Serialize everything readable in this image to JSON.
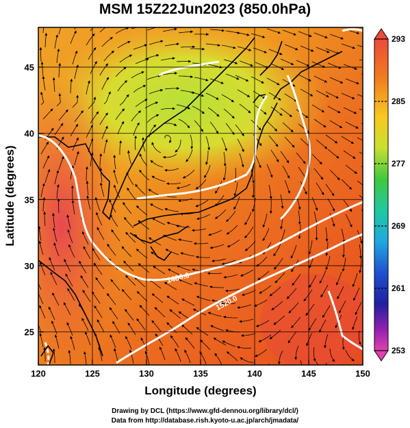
{
  "title": "MSM 15Z22Jun2023 (850.0hPa)",
  "axes": {
    "xlabel": "Longitude (degrees)",
    "ylabel": "Latitude  (degrees)",
    "x_ticks": [
      "120",
      "125",
      "130",
      "135",
      "140",
      "145",
      "150"
    ],
    "y_ticks": [
      "25",
      "30",
      "35",
      "40",
      "45"
    ]
  },
  "colorbar": {
    "min": 253,
    "max": 293,
    "labels": [
      "293",
      "285",
      "277",
      "269",
      "261",
      "253"
    ]
  },
  "contours": {
    "labels": [
      "1480.0",
      "1520.0"
    ]
  },
  "credits": {
    "line1": "Drawing by DCL (https://www.gfd-dennou.org/library/dcl/)",
    "line2": "Data from http://database.rish.kyoto-u.ac.jp/arch/jmadata/"
  },
  "colors": {
    "warm": "#e8502a",
    "mid": "#f4a020",
    "cool": "#b8e038",
    "contour": "#ffffff",
    "coast": "#000000"
  }
}
